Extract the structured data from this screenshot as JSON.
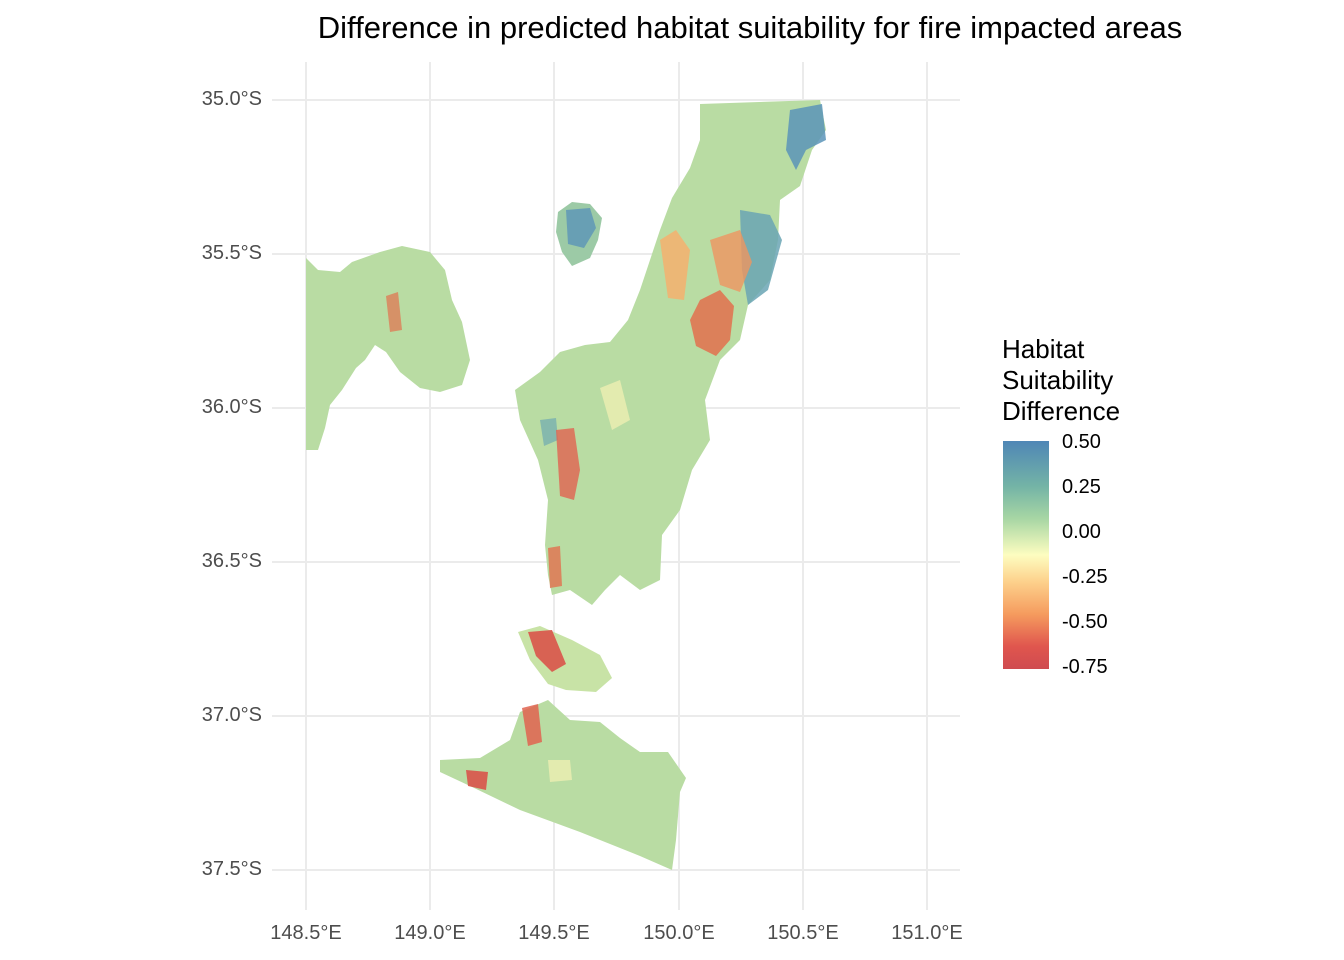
{
  "title": "Difference in predicted habitat suitability for fire impacted areas",
  "map_extent": {
    "longitude_range": [
      "148.5°E",
      "151.0°E"
    ],
    "latitude_range": [
      "35.0°S",
      "37.5°S"
    ],
    "region_description_visible": false
  },
  "axes": {
    "x_ticks": [
      "148.5°E",
      "149.0°E",
      "149.5°E",
      "150.0°E",
      "150.5°E",
      "151.0°E"
    ],
    "y_ticks": [
      "35.0°S",
      "35.5°S",
      "36.0°S",
      "36.5°S",
      "37.0°S",
      "37.5°S"
    ],
    "grid": true
  },
  "legend": {
    "title_lines": [
      "Habitat",
      "Suitability",
      "Difference"
    ],
    "ticks": [
      "0.50",
      "0.25",
      "0.00",
      "-0.25",
      "-0.50",
      "-0.75"
    ],
    "range": [
      -0.78,
      0.52
    ],
    "colors": [
      "#4f86b6",
      "#74b4a6",
      "#a7d6a4",
      "#fdfdc0",
      "#fdd08b",
      "#f59b5e",
      "#e0564e"
    ],
    "position": "right"
  },
  "colors": {
    "grid": "#ebebeb",
    "land_base": "#b9dca3",
    "high_positive": "#5b94b8",
    "negative": "#d9534a",
    "neutral": "#f5f1b4"
  }
}
